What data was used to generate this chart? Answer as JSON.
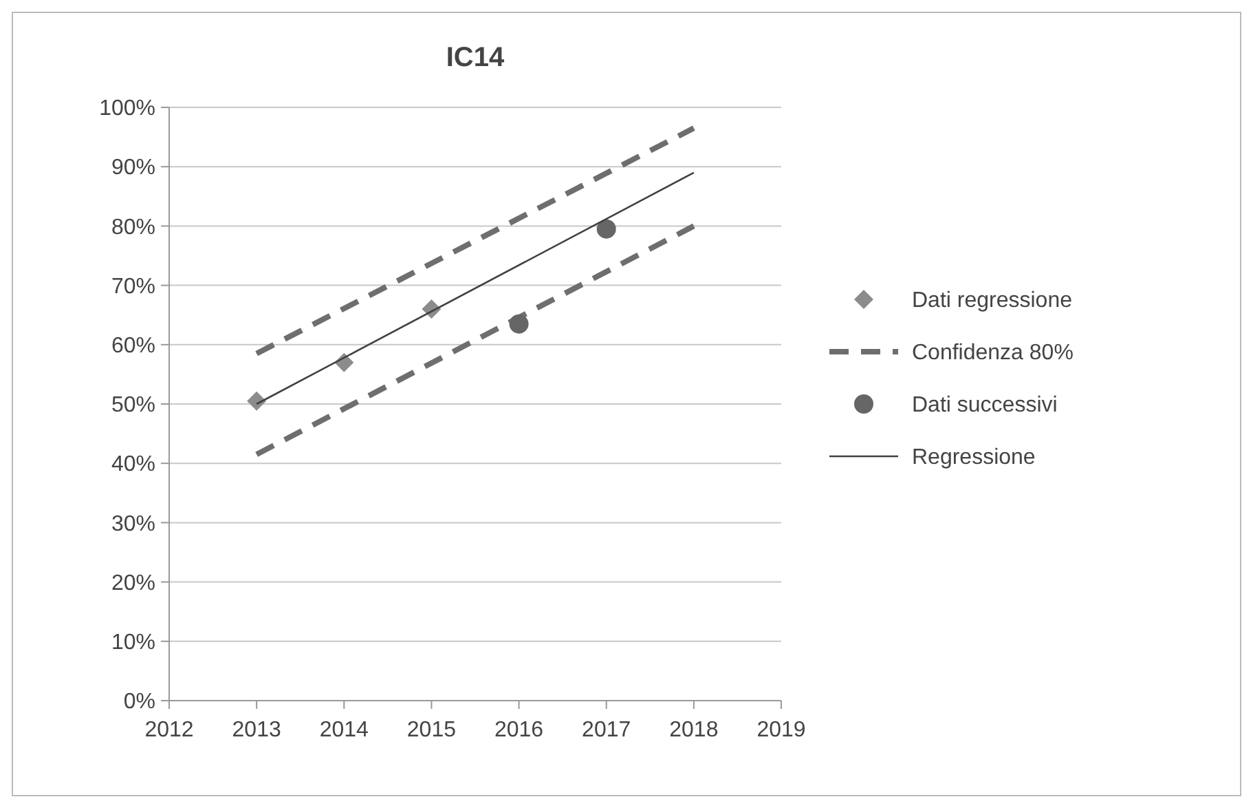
{
  "chart_data": {
    "type": "line",
    "title": "IC14",
    "xlim": [
      2012,
      2019
    ],
    "xticks": [
      2012,
      2013,
      2014,
      2015,
      2016,
      2017,
      2018,
      2019
    ],
    "ylim": [
      0,
      100
    ],
    "yticks": [
      {
        "value": 0,
        "label": "0%"
      },
      {
        "value": 10,
        "label": "10%"
      },
      {
        "value": 20,
        "label": "20%"
      },
      {
        "value": 30,
        "label": "30%"
      },
      {
        "value": 40,
        "label": "40%"
      },
      {
        "value": 50,
        "label": "50%"
      },
      {
        "value": 60,
        "label": "60%"
      },
      {
        "value": 70,
        "label": "70%"
      },
      {
        "value": 80,
        "label": "80%"
      },
      {
        "value": 90,
        "label": "90%"
      },
      {
        "value": 100,
        "label": "100%"
      }
    ],
    "grid": "y",
    "legend": "right",
    "series": [
      {
        "name": "Dati regressione",
        "type": "scatter",
        "marker": "diamond",
        "color": "#8c8c8c",
        "x": [
          2013,
          2014,
          2015
        ],
        "values": [
          50.5,
          57,
          66
        ]
      },
      {
        "name": "Confidenza 80%",
        "type": "line",
        "line_style": "dashed",
        "marker": "none",
        "color": "#6e6e6e",
        "x": [
          2013,
          2018
        ],
        "values": [
          58.5,
          96.5
        ]
      },
      {
        "type": "line",
        "line_style": "dashed",
        "marker": "none",
        "color": "#6e6e6e",
        "x": [
          2013,
          2018
        ],
        "values": [
          41.5,
          80
        ]
      },
      {
        "name": "Dati successivi",
        "type": "scatter",
        "marker": "circle",
        "color": "#666666",
        "x": [
          2016,
          2017
        ],
        "values": [
          63.5,
          79.5
        ]
      },
      {
        "name": "Regressione",
        "line_style": "solid",
        "marker": "none",
        "color": "#404040",
        "x": [
          2013,
          2018
        ],
        "values": [
          50,
          89
        ]
      }
    ]
  }
}
